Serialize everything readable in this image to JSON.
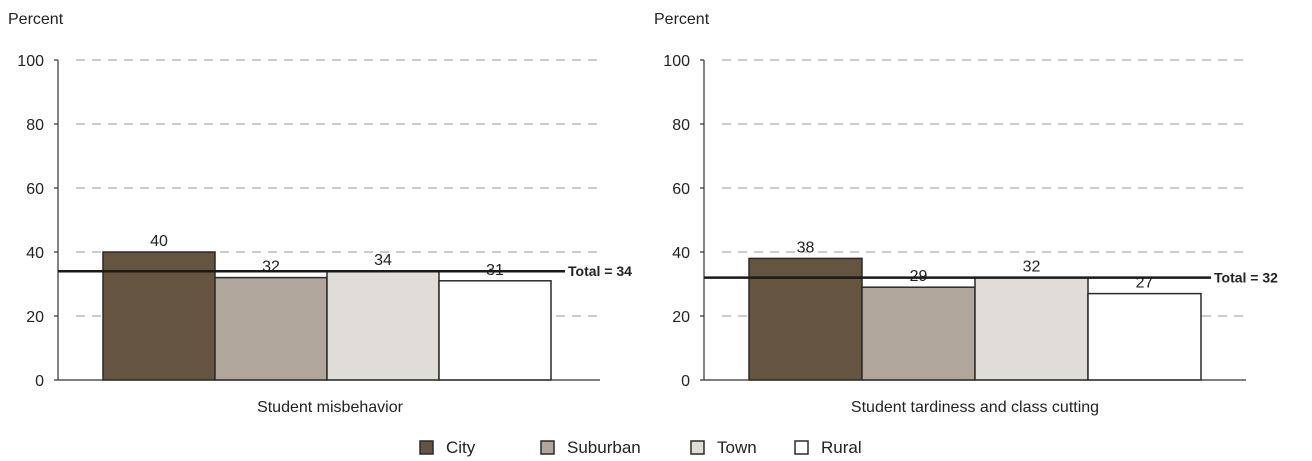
{
  "chart_data": [
    {
      "type": "bar",
      "ylabel": "Percent",
      "xlabel": "Student misbehavior",
      "ylim": [
        0,
        100
      ],
      "yticks": [
        0,
        20,
        40,
        60,
        80,
        100
      ],
      "grid": true,
      "categories": [
        "City",
        "Suburban",
        "Town",
        "Rural"
      ],
      "values": [
        40,
        32,
        34,
        31
      ],
      "reference_line": {
        "value": 34,
        "label": "Total = 34"
      }
    },
    {
      "type": "bar",
      "ylabel": "Percent",
      "xlabel": "Student tardiness and class cutting",
      "ylim": [
        0,
        100
      ],
      "yticks": [
        0,
        20,
        40,
        60,
        80,
        100
      ],
      "grid": true,
      "categories": [
        "City",
        "Suburban",
        "Town",
        "Rural"
      ],
      "values": [
        38,
        29,
        32,
        27
      ],
      "reference_line": {
        "value": 32,
        "label": "Total = 32"
      }
    }
  ],
  "legend": {
    "position": "bottom-center",
    "items": [
      {
        "label": "City",
        "color": "#65543f"
      },
      {
        "label": "Suburban",
        "color": "#b0a69c"
      },
      {
        "label": "Town",
        "color": "#e0ddd9"
      },
      {
        "label": "Rural",
        "color": "#ffffff"
      }
    ]
  }
}
